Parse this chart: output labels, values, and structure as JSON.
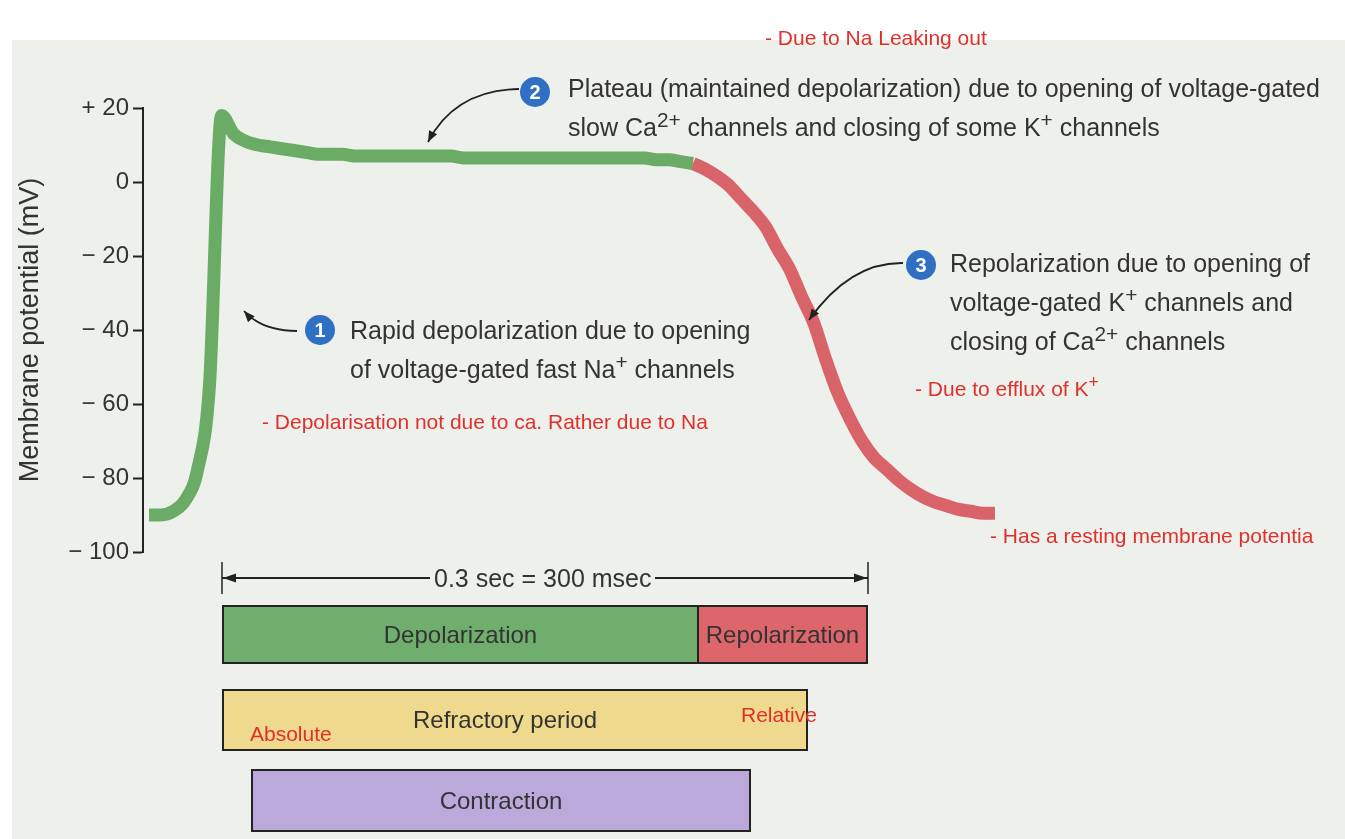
{
  "chart_data": {
    "type": "line",
    "ylabel": "Membrane potential (mV)",
    "categories": [
      null,
      null,
      null,
      null,
      null,
      null,
      null,
      null,
      null,
      null,
      null,
      null,
      null,
      null,
      null,
      null,
      null,
      null,
      null,
      null,
      null,
      null,
      null,
      null,
      null,
      null,
      null,
      null,
      null,
      null,
      null,
      null,
      null,
      null,
      null,
      null,
      null,
      null,
      null,
      null,
      null,
      null,
      null,
      null,
      null,
      null,
      null,
      null,
      null,
      null,
      null,
      null,
      null,
      null,
      null,
      null,
      null,
      null,
      null,
      null,
      null,
      null,
      null,
      null,
      null,
      null,
      null,
      null,
      null,
      null,
      null
    ],
    "series": [
      {
        "color": "#6aab66",
        "values": [
          -90,
          -90,
          -89,
          -86,
          -78,
          -55,
          18,
          13,
          11,
          10,
          9.5,
          9,
          8.5,
          8,
          7.5,
          7.5,
          7.5,
          7,
          7,
          7,
          7,
          7,
          7,
          7,
          7,
          7,
          6.5,
          6.5,
          6.5,
          6.5,
          6.5,
          6.5,
          6.5,
          6.5,
          6.5,
          6.5,
          6.5,
          6.5,
          6.5,
          6.5,
          6.5,
          6.5,
          6,
          6,
          5.5,
          5,
          null,
          null,
          null,
          null,
          null,
          null,
          null,
          null,
          null,
          null,
          null,
          null,
          null,
          null,
          null,
          null,
          null,
          null,
          null,
          null,
          null,
          null,
          null,
          null,
          null
        ]
      },
      {
        "color": "#d8646a",
        "values": [
          null,
          null,
          null,
          null,
          null,
          null,
          null,
          null,
          null,
          null,
          null,
          null,
          null,
          null,
          null,
          null,
          null,
          null,
          null,
          null,
          null,
          null,
          null,
          null,
          null,
          null,
          null,
          null,
          null,
          null,
          null,
          null,
          null,
          null,
          null,
          null,
          null,
          null,
          null,
          null,
          null,
          null,
          null,
          null,
          null,
          5,
          3.5,
          1.5,
          -1,
          -4.5,
          -8,
          -12,
          -18,
          -23.5,
          -31,
          -38,
          -48,
          -57,
          -64,
          -70,
          -74.5,
          -77.5,
          -80.5,
          -83,
          -85,
          -86.5,
          -87.5,
          -88.5,
          -89,
          -89.5,
          -89.5
        ]
      }
    ],
    "ylim": [
      -100,
      20
    ],
    "yticks": [
      {
        "value": -100,
        "label": "− 100"
      },
      {
        "value": -80,
        "label": "− 80"
      },
      {
        "value": -60,
        "label": "− 60"
      },
      {
        "value": -40,
        "label": "− 40"
      },
      {
        "value": -20,
        "label": "− 20"
      },
      0,
      {
        "value": 20,
        "label": "+ 20"
      }
    ],
    "tick_labels": "y",
    "grid": false,
    "legend": false,
    "marker": "none",
    "line_style": "solid",
    "annotations": [
      "- Due to Na Leaking out",
      "2",
      "Plateau (maintained depolarization) due to opening of voltage-gated slow Ca$^{2+}$ channels and closing of some K$^{+}$ channels",
      "1",
      "Rapid depolarization due to opening of voltage-gated fast Na$^{+}$ channels",
      "- Depolarisation not due to ca. Rather due to Na",
      "3",
      "Repolarization due to opening of voltage-gated K$^{+}$ channels and closing of Ca$^{2+}$ channels",
      "- Due to efflux of K$^{+}$",
      "- Has a resting membrane potentia",
      "0.3 sec = 300 msec",
      "Depolarization",
      "Repolarization",
      "Refractory period",
      "Absolute",
      "Relative",
      "Contraction"
    ]
  }
}
